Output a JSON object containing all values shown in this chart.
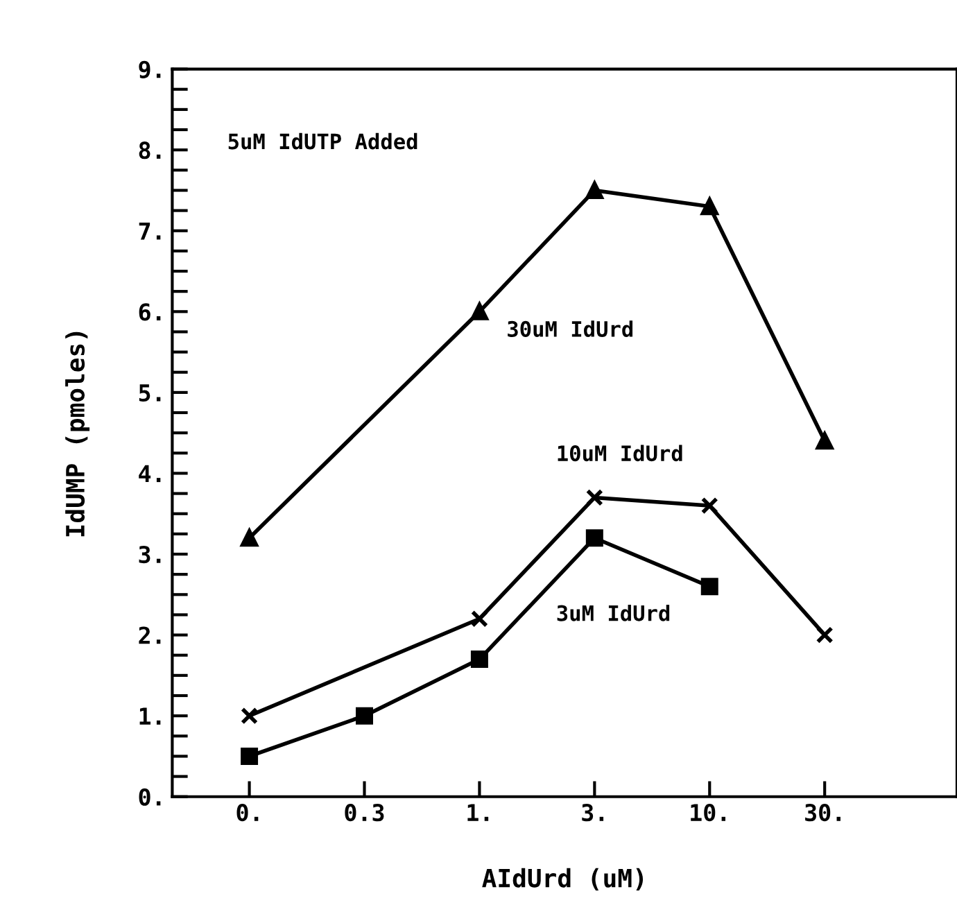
{
  "chart_data": {
    "type": "line",
    "xlabel": "AIdUrd (uM)",
    "ylabel": "IdUMP (pmoles)",
    "categories": [
      "0.",
      "0.3",
      "1.",
      "3.",
      "10.",
      "30."
    ],
    "series": [
      {
        "name": "30uM IdUrd",
        "color": "#000000",
        "marker": "triangle",
        "values": [
          3.2,
          null,
          6.0,
          7.5,
          7.3,
          4.4
        ]
      },
      {
        "name": "10uM IdUrd",
        "color": "#000000",
        "marker": "cross",
        "values": [
          1.0,
          null,
          2.2,
          3.7,
          3.6,
          2.0
        ]
      },
      {
        "name": "3uM IdUrd",
        "color": "#000000",
        "marker": "square",
        "values": [
          0.5,
          1.0,
          1.7,
          3.2,
          2.6,
          null
        ]
      }
    ],
    "ylim": [
      0,
      9
    ],
    "yticks": [
      {
        "value": 0,
        "label": "0."
      },
      {
        "value": 0.25,
        "label": null
      },
      {
        "value": 0.5,
        "label": null
      },
      {
        "value": 0.75,
        "label": null
      },
      {
        "value": 1,
        "label": "1."
      },
      {
        "value": 1.25,
        "label": null
      },
      {
        "value": 1.5,
        "label": null
      },
      {
        "value": 1.75,
        "label": null
      },
      {
        "value": 2,
        "label": "2."
      },
      {
        "value": 2.25,
        "label": null
      },
      {
        "value": 2.5,
        "label": null
      },
      {
        "value": 2.75,
        "label": null
      },
      {
        "value": 3,
        "label": "3."
      },
      {
        "value": 3.25,
        "label": null
      },
      {
        "value": 3.5,
        "label": null
      },
      {
        "value": 3.75,
        "label": null
      },
      {
        "value": 4,
        "label": "4."
      },
      {
        "value": 4.25,
        "label": null
      },
      {
        "value": 4.5,
        "label": null
      },
      {
        "value": 4.75,
        "label": null
      },
      {
        "value": 5,
        "label": "5."
      },
      {
        "value": 5.25,
        "label": null
      },
      {
        "value": 5.5,
        "label": null
      },
      {
        "value": 5.75,
        "label": null
      },
      {
        "value": 6,
        "label": "6."
      },
      {
        "value": 6.25,
        "label": null
      },
      {
        "value": 6.5,
        "label": null
      },
      {
        "value": 6.75,
        "label": null
      },
      {
        "value": 7,
        "label": "7."
      },
      {
        "value": 7.25,
        "label": null
      },
      {
        "value": 7.5,
        "label": null
      },
      {
        "value": 7.75,
        "label": null
      },
      {
        "value": 8,
        "label": "8."
      },
      {
        "value": 8.25,
        "label": null
      },
      {
        "value": 8.5,
        "label": null
      },
      {
        "value": 8.75,
        "label": null
      },
      {
        "value": 9,
        "label": "9."
      }
    ],
    "annotations": [
      "5uM IdUTP Added"
    ],
    "line_style": "solid",
    "grid": false,
    "legend": false
  }
}
